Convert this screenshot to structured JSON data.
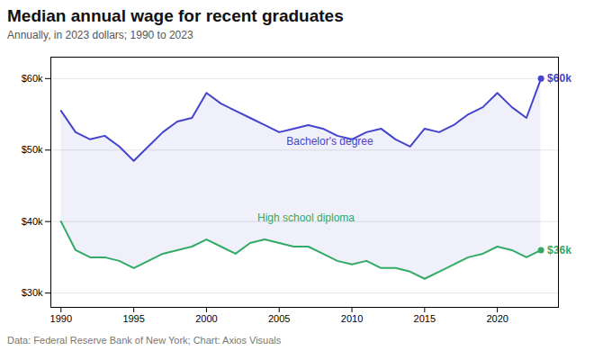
{
  "chart_data": {
    "type": "line",
    "title": "Median annual wage for recent graduates",
    "subtitle": "Annually, in 2023 dollars; 1990 to 2023",
    "footer": "Data: Federal Reserve Bank of New York; Chart: Axios Visuals",
    "x": [
      1990,
      1991,
      1992,
      1993,
      1994,
      1995,
      1996,
      1997,
      1998,
      1999,
      2000,
      2001,
      2002,
      2003,
      2004,
      2005,
      2006,
      2007,
      2008,
      2009,
      2010,
      2011,
      2012,
      2013,
      2014,
      2015,
      2016,
      2017,
      2018,
      2019,
      2020,
      2021,
      2022,
      2023
    ],
    "series": [
      {
        "name": "Bachelor's degree",
        "color": "#4444cc",
        "values": [
          55500,
          52500,
          51500,
          52000,
          50500,
          48500,
          50500,
          52500,
          54000,
          54500,
          58000,
          56500,
          55500,
          54500,
          53500,
          52500,
          53000,
          53500,
          53000,
          52000,
          51500,
          52500,
          53000,
          51500,
          50500,
          53000,
          52500,
          53500,
          55000,
          56000,
          58000,
          56000,
          54500,
          60000
        ],
        "value_labels": [
          null,
          null,
          null,
          null,
          null,
          null,
          null,
          null,
          null,
          null,
          null,
          null,
          null,
          null,
          null,
          null,
          null,
          null,
          null,
          null,
          null,
          null,
          null,
          null,
          null,
          null,
          null,
          null,
          null,
          null,
          null,
          null,
          null,
          "$60k"
        ]
      },
      {
        "name": "High school diploma",
        "color": "#33aa66",
        "values": [
          40000,
          36000,
          35000,
          35000,
          34500,
          33500,
          34500,
          35500,
          36000,
          36500,
          37500,
          36500,
          35500,
          37000,
          37500,
          37000,
          36500,
          36500,
          35500,
          34500,
          34000,
          34500,
          33500,
          33500,
          33000,
          32000,
          33000,
          34000,
          35000,
          35500,
          36500,
          36000,
          35000,
          36000
        ],
        "value_labels": [
          null,
          null,
          null,
          null,
          null,
          null,
          null,
          null,
          null,
          null,
          null,
          null,
          null,
          null,
          null,
          null,
          null,
          null,
          null,
          null,
          null,
          null,
          null,
          null,
          null,
          null,
          null,
          null,
          null,
          null,
          null,
          null,
          null,
          "$36k"
        ]
      }
    ],
    "annotations": [
      {
        "text": "Bachelor's degree",
        "x": 2005.5,
        "y": 51200,
        "color": "#4444cc"
      },
      {
        "text": "High school diploma",
        "x": 2003.5,
        "y": 40500,
        "color": "#33aa66"
      }
    ],
    "xlim": [
      1989.3,
      2024.2
    ],
    "xticks": [
      1990,
      1995,
      2000,
      2005,
      2010,
      2015,
      2020
    ],
    "ylim": [
      28000,
      63000
    ],
    "yticks": [
      {
        "value": 30000,
        "label": "$30k"
      },
      {
        "value": 40000,
        "label": "$40k"
      },
      {
        "value": 50000,
        "label": "$50k"
      },
      {
        "value": 60000,
        "label": "$60k"
      }
    ],
    "grid": true
  }
}
